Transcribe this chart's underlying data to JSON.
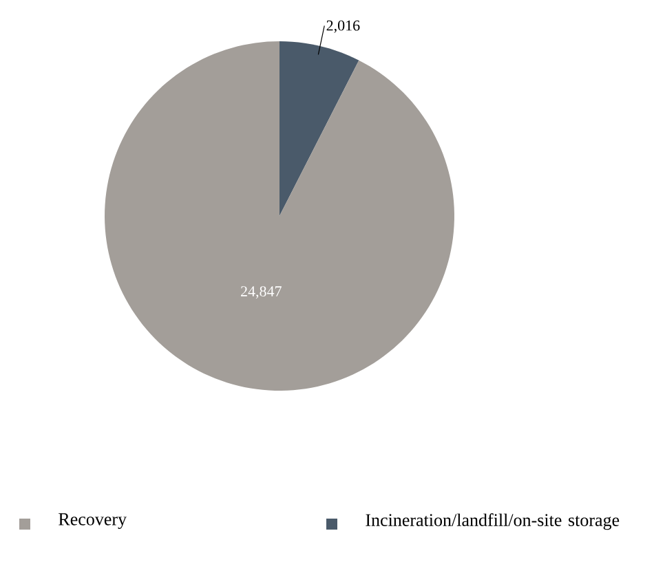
{
  "chart_data": {
    "type": "pie",
    "categories": [
      "Recovery",
      "Incineration/landfill/on-site storage"
    ],
    "values": [
      24847,
      2016
    ],
    "value_labels": [
      "24,847",
      "2,016"
    ],
    "colors": [
      "#a39e99",
      "#4a5a6a"
    ],
    "legend": "bottom"
  }
}
